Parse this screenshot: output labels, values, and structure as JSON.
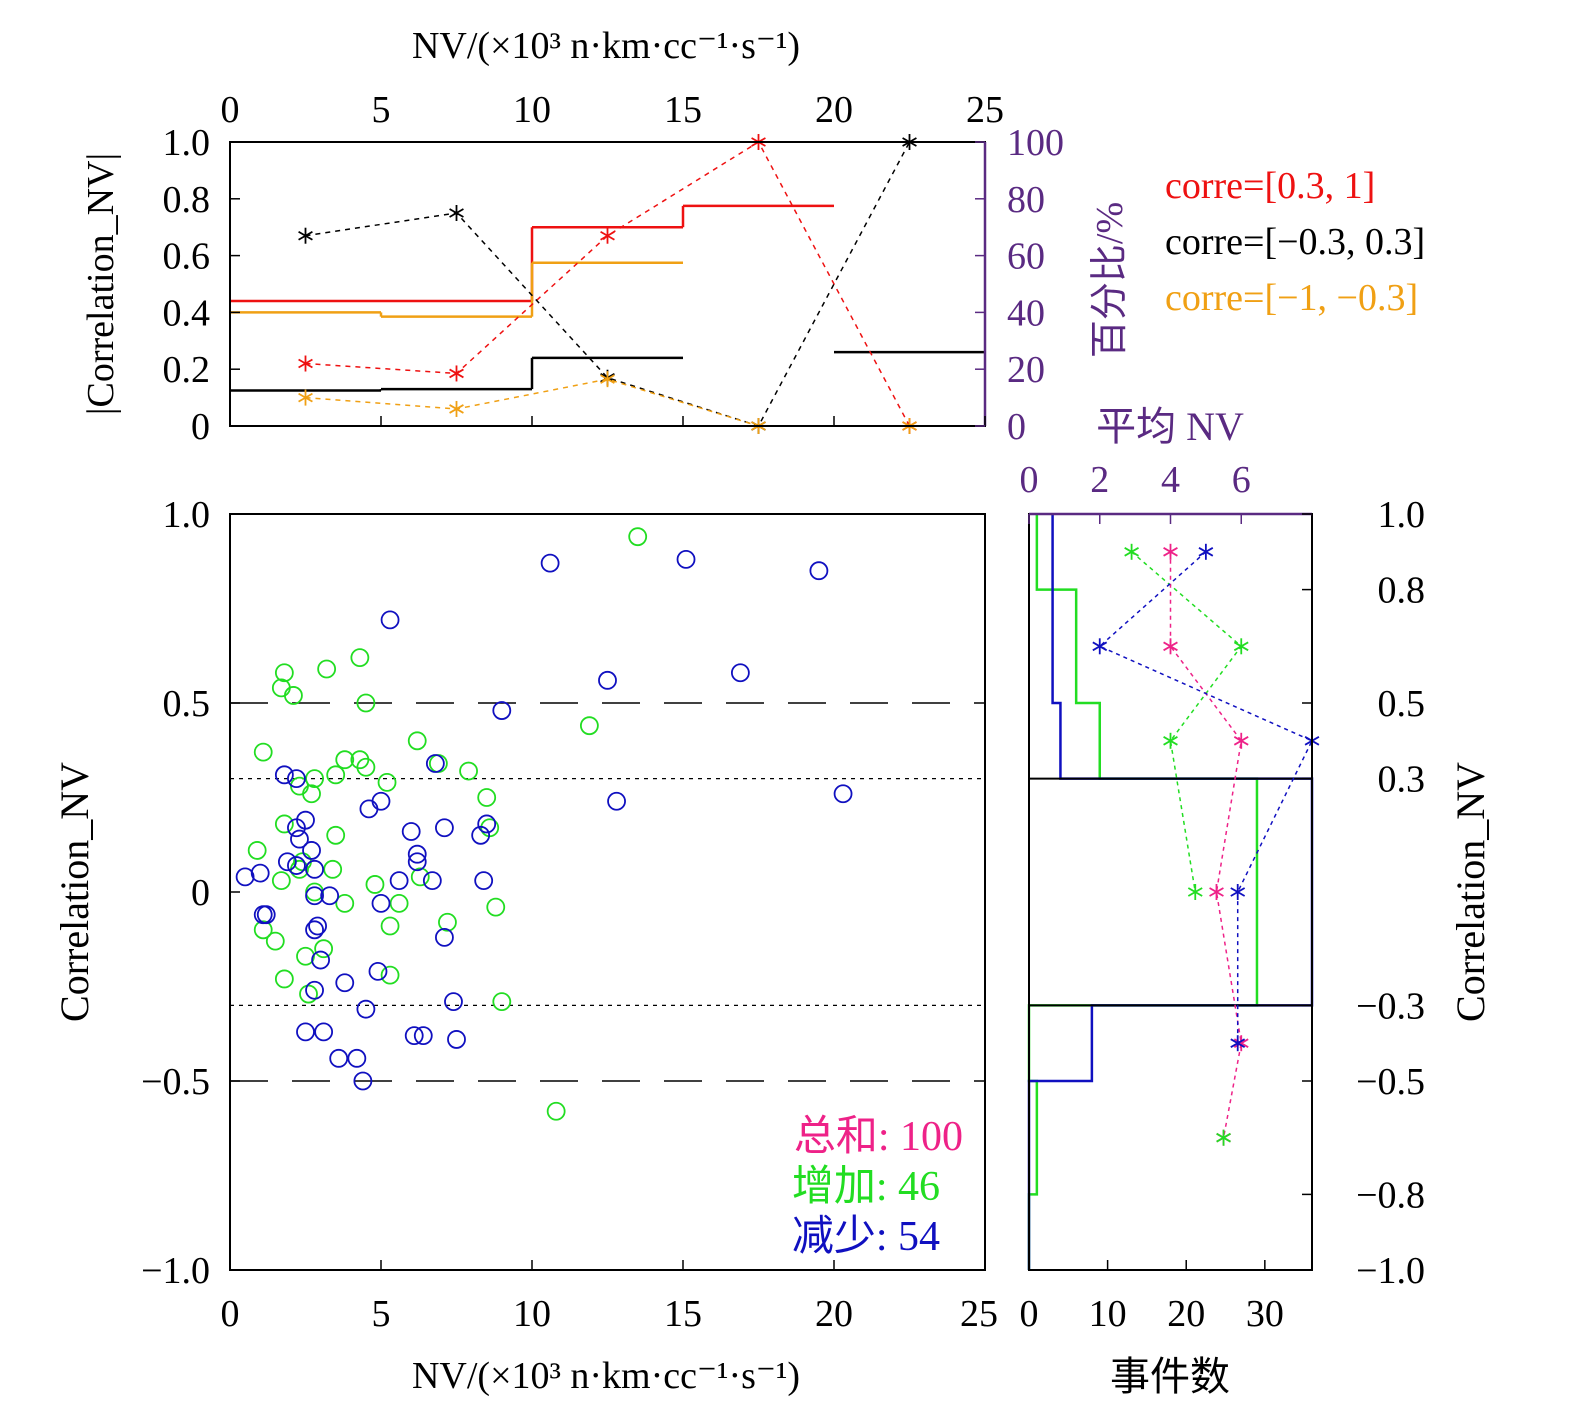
{
  "colors": {
    "red": "#ee1111",
    "black": "#000000",
    "orange": "#f0a014",
    "green": "#22dd22",
    "blue": "#1010c0",
    "magenta": "#ee2288",
    "purple": "#5a2a82"
  },
  "chart_data": [
    {
      "panel": "top",
      "type": "line",
      "xlabel": "NV/(×10³ n·km·cc⁻¹·s⁻¹)",
      "ylabel": "|Correlation_NV|",
      "ylabel_right": "百分比/%",
      "xlim": [
        0,
        25
      ],
      "ylim": [
        0,
        1.0
      ],
      "ylim_right": [
        0,
        100
      ],
      "x_ticks": [
        "0",
        "5",
        "10",
        "15",
        "20",
        "25"
      ],
      "y_ticks": [
        "0",
        "0.2",
        "0.4",
        "0.6",
        "0.8",
        "1.0"
      ],
      "y_ticks_right": [
        "0",
        "20",
        "40",
        "60",
        "80",
        "100"
      ],
      "legend": [
        "corre=[0.3, 1]",
        "corre=[−0.3, 0.3]",
        "corre=[−1, −0.3]"
      ],
      "step_series": [
        {
          "name": "corre=[0.3, 1]",
          "color": "red",
          "segments": [
            [
              0,
              5,
              0.44
            ],
            [
              5,
              10,
              0.44
            ],
            [
              10,
              15,
              0.7
            ],
            [
              15,
              20,
              0.775
            ]
          ]
        },
        {
          "name": "corre=[−0.3, 0.3]",
          "color": "black",
          "segments": [
            [
              0,
              5,
              0.125
            ],
            [
              5,
              10,
              0.13
            ],
            [
              10,
              15,
              0.24
            ],
            [
              20,
              25,
              0.26
            ]
          ]
        },
        {
          "name": "corre=[−1, −0.3]",
          "color": "orange",
          "segments": [
            [
              0,
              5,
              0.4
            ],
            [
              5,
              10,
              0.385
            ],
            [
              10,
              15,
              0.575
            ]
          ]
        }
      ],
      "series": [
        {
          "name": "corre=[0.3, 1]",
          "color": "red",
          "x": [
            2.5,
            7.5,
            12.5,
            17.5,
            22.5
          ],
          "y": [
            22,
            18.5,
            67,
            100,
            0
          ]
        },
        {
          "name": "corre=[−0.3, 0.3]",
          "color": "black",
          "x": [
            2.5,
            7.5,
            12.5,
            17.5,
            22.5
          ],
          "y": [
            67,
            75,
            17,
            0,
            100
          ]
        },
        {
          "name": "corre=[−1, −0.3]",
          "color": "orange",
          "x": [
            2.5,
            7.5,
            12.5,
            17.5,
            22.5
          ],
          "y": [
            10,
            6,
            16.5,
            0,
            0
          ]
        }
      ]
    },
    {
      "panel": "main",
      "type": "scatter",
      "xlabel": "NV/(×10³ n·km·cc⁻¹·s⁻¹)",
      "ylabel": "Correlation_NV",
      "xlim": [
        0,
        25
      ],
      "ylim": [
        -1.0,
        1.0
      ],
      "x_ticks": [
        "0",
        "5",
        "10",
        "15",
        "20",
        "25"
      ],
      "y_ticks": [
        "−1.0",
        "−0.5",
        "0",
        "0.5",
        "1.0"
      ],
      "dashed_lines": [
        0.5,
        -0.5
      ],
      "dotted_lines": [
        0.3,
        -0.3
      ],
      "annotations": [
        {
          "label": "总和",
          "value": "100",
          "color": "magenta"
        },
        {
          "label": "增加",
          "value": "46",
          "color": "green"
        },
        {
          "label": "减少",
          "value": "54",
          "color": "blue"
        }
      ],
      "series": [
        {
          "name": "增加",
          "color": "green",
          "points": [
            [
              13.5,
              0.94
            ],
            [
              4.3,
              0.62
            ],
            [
              3.2,
              0.59
            ],
            [
              1.8,
              0.58
            ],
            [
              1.7,
              0.54
            ],
            [
              2.1,
              0.52
            ],
            [
              4.5,
              0.5
            ],
            [
              11.9,
              0.44
            ],
            [
              6.2,
              0.4
            ],
            [
              1.1,
              0.37
            ],
            [
              3.8,
              0.35
            ],
            [
              4.3,
              0.35
            ],
            [
              4.5,
              0.33
            ],
            [
              6.9,
              0.34
            ],
            [
              7.9,
              0.32
            ],
            [
              2.8,
              0.3
            ],
            [
              3.5,
              0.31
            ],
            [
              5.2,
              0.29
            ],
            [
              2.3,
              0.28
            ],
            [
              2.7,
              0.26
            ],
            [
              8.5,
              0.25
            ],
            [
              1.8,
              0.18
            ],
            [
              3.5,
              0.15
            ],
            [
              8.6,
              0.17
            ],
            [
              0.9,
              0.11
            ],
            [
              2.4,
              0.08
            ],
            [
              2.3,
              0.06
            ],
            [
              3.4,
              0.06
            ],
            [
              1.7,
              0.03
            ],
            [
              6.3,
              0.04
            ],
            [
              2.8,
              0.0
            ],
            [
              4.8,
              0.02
            ],
            [
              3.8,
              -0.03
            ],
            [
              5.6,
              -0.03
            ],
            [
              8.8,
              -0.04
            ],
            [
              1.1,
              -0.1
            ],
            [
              1.5,
              -0.13
            ],
            [
              5.3,
              -0.09
            ],
            [
              7.2,
              -0.08
            ],
            [
              3.1,
              -0.15
            ],
            [
              2.5,
              -0.17
            ],
            [
              5.3,
              -0.22
            ],
            [
              1.8,
              -0.23
            ],
            [
              2.6,
              -0.27
            ],
            [
              9.0,
              -0.29
            ],
            [
              10.8,
              -0.58
            ]
          ]
        },
        {
          "name": "减少",
          "color": "blue",
          "points": [
            [
              10.6,
              0.87
            ],
            [
              15.1,
              0.88
            ],
            [
              19.5,
              0.85
            ],
            [
              5.3,
              0.72
            ],
            [
              16.9,
              0.58
            ],
            [
              12.5,
              0.56
            ],
            [
              9.0,
              0.48
            ],
            [
              6.8,
              0.34
            ],
            [
              1.8,
              0.31
            ],
            [
              2.2,
              0.3
            ],
            [
              5.0,
              0.24
            ],
            [
              12.8,
              0.24
            ],
            [
              20.3,
              0.26
            ],
            [
              4.6,
              0.22
            ],
            [
              2.5,
              0.19
            ],
            [
              2.2,
              0.17
            ],
            [
              6.0,
              0.16
            ],
            [
              7.1,
              0.17
            ],
            [
              8.3,
              0.15
            ],
            [
              8.5,
              0.18
            ],
            [
              2.3,
              0.14
            ],
            [
              6.2,
              0.1
            ],
            [
              6.2,
              0.08
            ],
            [
              1.9,
              0.08
            ],
            [
              2.2,
              0.07
            ],
            [
              2.7,
              0.11
            ],
            [
              2.8,
              0.06
            ],
            [
              0.5,
              0.04
            ],
            [
              1.0,
              0.05
            ],
            [
              5.6,
              0.03
            ],
            [
              6.7,
              0.03
            ],
            [
              8.4,
              0.03
            ],
            [
              2.8,
              -0.01
            ],
            [
              3.3,
              -0.01
            ],
            [
              5.0,
              -0.03
            ],
            [
              1.1,
              -0.06
            ],
            [
              1.2,
              -0.06
            ],
            [
              2.8,
              -0.1
            ],
            [
              2.9,
              -0.09
            ],
            [
              7.1,
              -0.12
            ],
            [
              3.0,
              -0.18
            ],
            [
              4.9,
              -0.21
            ],
            [
              3.8,
              -0.24
            ],
            [
              2.8,
              -0.26
            ],
            [
              7.4,
              -0.29
            ],
            [
              4.5,
              -0.31
            ],
            [
              2.5,
              -0.37
            ],
            [
              3.1,
              -0.37
            ],
            [
              6.1,
              -0.38
            ],
            [
              7.5,
              -0.39
            ],
            [
              3.6,
              -0.44
            ],
            [
              4.2,
              -0.44
            ],
            [
              4.4,
              -0.5
            ],
            [
              6.4,
              -0.38
            ]
          ]
        }
      ]
    },
    {
      "panel": "side",
      "type": "line",
      "xlabel": "事件数",
      "xlabel_top": "平均 NV",
      "ylabel": "Correlation_NV",
      "xlim": [
        0,
        36
      ],
      "xlim_top": [
        0,
        8
      ],
      "ylim": [
        -1.0,
        1.0
      ],
      "x_ticks": [
        "0",
        "10",
        "20",
        "30"
      ],
      "x_ticks_top": [
        "0",
        "2",
        "4",
        "6"
      ],
      "y_ticks": [
        "−1.0",
        "−0.8",
        "−0.5",
        "−0.3",
        "0.3",
        "0.5",
        "0.8",
        "1.0"
      ],
      "divider_lines": [
        0.3,
        -0.3
      ],
      "histograms": [
        {
          "name": "增加",
          "color": "green",
          "segments": [
            [
              1.0,
              0.8,
              1
            ],
            [
              0.8,
              0.5,
              6
            ],
            [
              0.5,
              0.3,
              9
            ],
            [
              0.3,
              -0.3,
              29
            ],
            [
              -0.3,
              -0.5,
              0
            ],
            [
              -0.5,
              -0.8,
              1
            ],
            [
              -0.8,
              -1.0,
              0
            ]
          ]
        },
        {
          "name": "减少",
          "color": "blue",
          "segments": [
            [
              1.0,
              0.8,
              3
            ],
            [
              0.8,
              0.5,
              3
            ],
            [
              0.5,
              0.3,
              4
            ],
            [
              0.3,
              -0.3,
              36
            ],
            [
              -0.3,
              -0.5,
              8
            ],
            [
              -0.5,
              -0.8,
              0
            ],
            [
              -0.8,
              -1.0,
              0
            ]
          ]
        }
      ],
      "series": [
        {
          "name": "增加",
          "color": "green",
          "x": [
            2.9,
            6.0,
            4.0,
            4.7
          ],
          "y": [
            0.9,
            0.65,
            0.4,
            0.0
          ]
        },
        {
          "name": "总和",
          "color": "magenta",
          "x": [
            4.0,
            4.0,
            6.0,
            5.3,
            6.0,
            5.5
          ],
          "y": [
            0.9,
            0.65,
            0.4,
            0.0,
            -0.4,
            -0.65
          ]
        },
        {
          "name": "减少",
          "color": "blue",
          "x": [
            5.0,
            2.0,
            8.0,
            5.9,
            5.9
          ],
          "y": [
            0.9,
            0.65,
            0.4,
            0.0,
            -0.4
          ]
        },
        {
          "name": "增加 (tail)",
          "color": "green",
          "x": [
            5.5
          ],
          "y": [
            -0.65
          ]
        }
      ]
    }
  ]
}
